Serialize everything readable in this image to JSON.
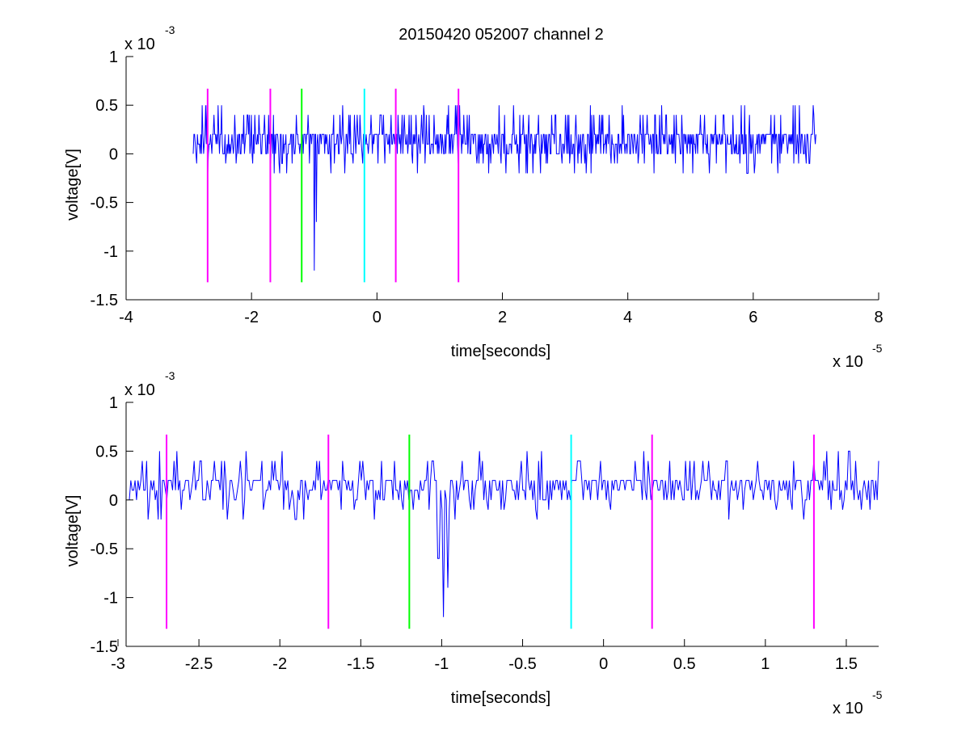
{
  "figure": {
    "title": "20150420 052007 channel 2"
  },
  "chart_data": [
    {
      "type": "line",
      "xlabel": "time[seconds]",
      "ylabel": "voltage[V]",
      "x_multiplier": "x 10",
      "x_multiplier_exp": "-5",
      "y_multiplier": "x 10",
      "y_multiplier_exp": "-3",
      "xlim": [
        -4,
        8
      ],
      "ylim": [
        -1.5,
        1
      ],
      "xticks": [
        -4,
        -2,
        0,
        2,
        4,
        6,
        8
      ],
      "xtick_labels": [
        "-4",
        "-2",
        "0",
        "2",
        "4",
        "6",
        "8"
      ],
      "yticks": [
        -1.5,
        -1,
        -0.5,
        0,
        0.5,
        1
      ],
      "ytick_labels": [
        "-1.5",
        "-1",
        "-0.5",
        "0",
        "0.5",
        "1"
      ],
      "grid": false,
      "signal": {
        "color": "#0000ff",
        "x_start": -2.93,
        "x_end": 7.0,
        "base_values": [
          0,
          0.2,
          0.2,
          0.2,
          0.4,
          0.2,
          0.1
        ],
        "spikes": [
          {
            "x": -1.0,
            "y": -1.2
          },
          {
            "x": -0.97,
            "y": -0.7
          }
        ]
      },
      "markers": [
        {
          "x": -2.7,
          "y_from": -1.32,
          "y_to": 0.67,
          "color": "#ff00ff"
        },
        {
          "x": -1.7,
          "y_from": -1.32,
          "y_to": 0.67,
          "color": "#ff00ff"
        },
        {
          "x": -1.2,
          "y_from": -1.32,
          "y_to": 0.67,
          "color": "#00ff00"
        },
        {
          "x": -0.2,
          "y_from": -1.32,
          "y_to": 0.67,
          "color": "#00ffff"
        },
        {
          "x": 0.3,
          "y_from": -1.32,
          "y_to": 0.67,
          "color": "#ff00ff"
        },
        {
          "x": 1.3,
          "y_from": -1.32,
          "y_to": 0.67,
          "color": "#ff00ff"
        }
      ]
    },
    {
      "type": "line",
      "xlabel": "time[seconds]",
      "ylabel": "voltage[V]",
      "x_multiplier": "x 10",
      "x_multiplier_exp": "-5",
      "y_multiplier": "x 10",
      "y_multiplier_exp": "-3",
      "xlim": [
        -2.95,
        1.7
      ],
      "ylim": [
        -1.5,
        1
      ],
      "xticks": [
        -3,
        -2.5,
        -2,
        -1.5,
        -1,
        -0.5,
        0,
        0.5,
        1,
        1.5
      ],
      "xtick_labels": [
        "-3",
        "-2.5",
        "-2",
        "-1.5",
        "-1",
        "-0.5",
        "0",
        "0.5",
        "1",
        "1.5"
      ],
      "yticks": [
        -1.5,
        -1,
        -0.5,
        0,
        0.5,
        1
      ],
      "ytick_labels": [
        "-1.5",
        "-1",
        "-0.5",
        "0",
        "0.5",
        "1"
      ],
      "grid": false,
      "signal": {
        "color": "#0000ff",
        "x_start": -2.93,
        "x_end": 1.7,
        "base_values": [
          0,
          0.2,
          0.2,
          0.4,
          0.2,
          0,
          0.2
        ],
        "spikes": [
          {
            "x": -1.02,
            "y": -0.6
          },
          {
            "x": -0.99,
            "y": -1.2
          },
          {
            "x": -0.96,
            "y": -0.9
          }
        ]
      },
      "markers": [
        {
          "x": -2.7,
          "y_from": -1.32,
          "y_to": 0.67,
          "color": "#ff00ff"
        },
        {
          "x": -1.7,
          "y_from": -1.32,
          "y_to": 0.67,
          "color": "#ff00ff"
        },
        {
          "x": -1.2,
          "y_from": -1.32,
          "y_to": 0.67,
          "color": "#00ff00"
        },
        {
          "x": -0.2,
          "y_from": -1.32,
          "y_to": 0.67,
          "color": "#00ffff"
        },
        {
          "x": 0.3,
          "y_from": -1.32,
          "y_to": 0.67,
          "color": "#ff00ff"
        },
        {
          "x": 1.3,
          "y_from": -1.32,
          "y_to": 0.67,
          "color": "#ff00ff"
        }
      ]
    }
  ]
}
